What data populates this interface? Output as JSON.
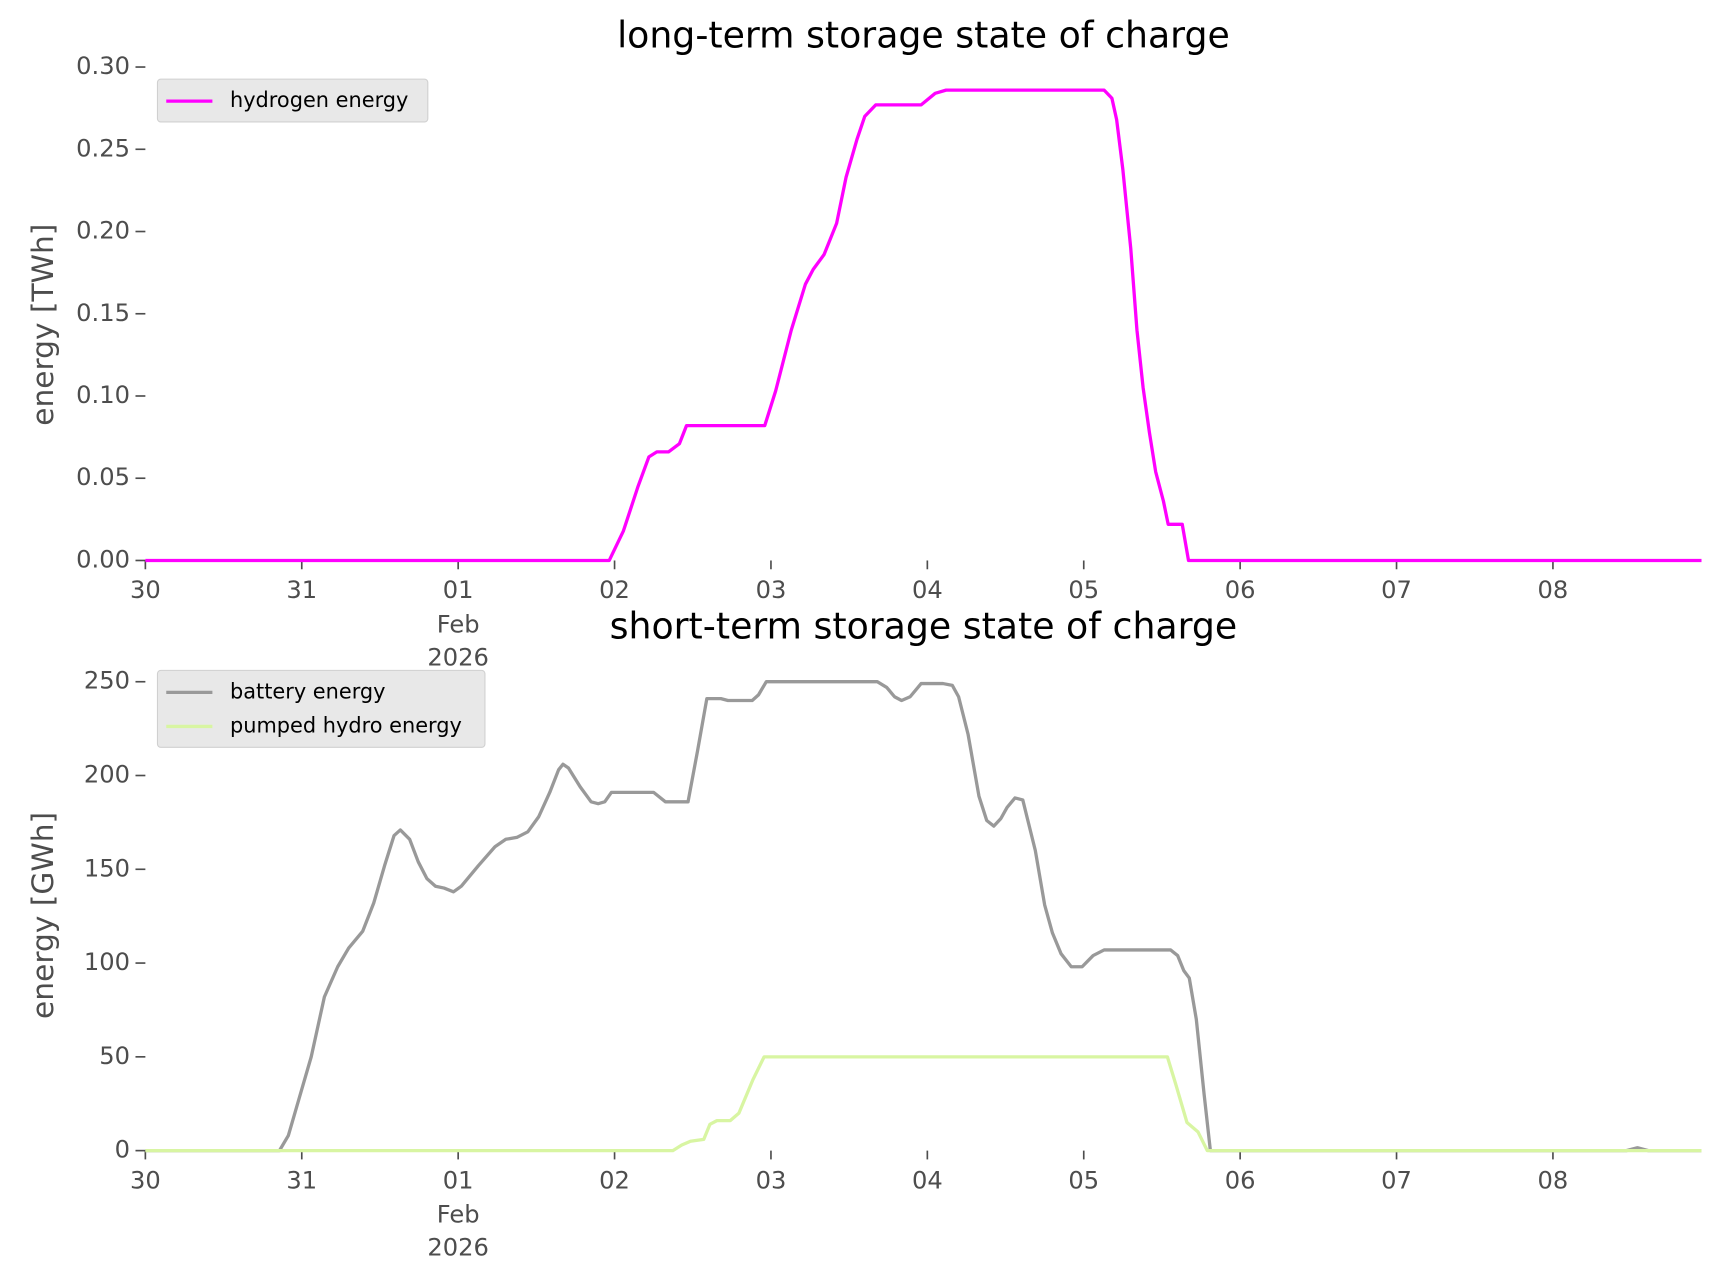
{
  "chart_data": [
    {
      "type": "line",
      "title": "long-term storage state of charge",
      "ylabel": "energy [TWh]",
      "xlim": [
        0,
        9.95
      ],
      "ylim": [
        0,
        0.3
      ],
      "xticks": [
        {
          "value": 0,
          "label": "30"
        },
        {
          "value": 1,
          "label": "31"
        },
        {
          "value": 2,
          "label": "01"
        },
        {
          "value": 3,
          "label": "02"
        },
        {
          "value": 4,
          "label": "03"
        },
        {
          "value": 5,
          "label": "04"
        },
        {
          "value": 6,
          "label": "05"
        },
        {
          "value": 7,
          "label": "06"
        },
        {
          "value": 8,
          "label": "07"
        },
        {
          "value": 9,
          "label": "08"
        }
      ],
      "xtick_sublabels": [
        "Feb",
        "2026"
      ],
      "yticks": [
        {
          "value": 0,
          "label": "0.00"
        },
        {
          "value": 0.05,
          "label": "0.05"
        },
        {
          "value": 0.1,
          "label": "0.10"
        },
        {
          "value": 0.15,
          "label": "0.15"
        },
        {
          "value": 0.2,
          "label": "0.20"
        },
        {
          "value": 0.25,
          "label": "0.25"
        },
        {
          "value": 0.3,
          "label": "0.30"
        }
      ],
      "legend": "upper left",
      "series": [
        {
          "name": "hydrogen energy",
          "color": "#ff00ff",
          "x": [
            0,
            2.966,
            3.057,
            3.15,
            3.22,
            3.27,
            3.345,
            3.415,
            3.46,
            3.96,
            4.03,
            4.13,
            4.22,
            4.27,
            4.34,
            4.42,
            4.48,
            4.55,
            4.6,
            4.67,
            4.96,
            5.05,
            5.12,
            6.13,
            6.18,
            6.21,
            6.25,
            6.3,
            6.34,
            6.38,
            6.42,
            6.46,
            6.51,
            6.54,
            6.63,
            6.67,
            9.95
          ],
          "values": [
            0,
            0,
            0.018,
            0.045,
            0.063,
            0.066,
            0.066,
            0.071,
            0.082,
            0.082,
            0.103,
            0.14,
            0.168,
            0.177,
            0.186,
            0.205,
            0.233,
            0.256,
            0.27,
            0.277,
            0.277,
            0.284,
            0.286,
            0.286,
            0.281,
            0.268,
            0.238,
            0.19,
            0.14,
            0.105,
            0.078,
            0.054,
            0.036,
            0.022,
            0.022,
            0,
            0
          ]
        }
      ]
    },
    {
      "type": "line",
      "title": "short-term storage state of charge",
      "ylabel": "energy [GWh]",
      "xlim": [
        0,
        9.95
      ],
      "ylim": [
        0,
        262.5
      ],
      "xticks": [
        {
          "value": 0,
          "label": "30"
        },
        {
          "value": 1,
          "label": "31"
        },
        {
          "value": 2,
          "label": "01"
        },
        {
          "value": 3,
          "label": "02"
        },
        {
          "value": 4,
          "label": "03"
        },
        {
          "value": 5,
          "label": "04"
        },
        {
          "value": 6,
          "label": "05"
        },
        {
          "value": 7,
          "label": "06"
        },
        {
          "value": 8,
          "label": "07"
        },
        {
          "value": 9,
          "label": "08"
        }
      ],
      "xtick_sublabels": [
        "Feb",
        "2026"
      ],
      "yticks": [
        0,
        50,
        100,
        150,
        200,
        250
      ],
      "legend": "upper left",
      "series": [
        {
          "name": "battery energy",
          "color": "#999999",
          "x": [
            0,
            0.857,
            0.914,
            0.984,
            1.06,
            1.145,
            1.23,
            1.3,
            1.39,
            1.46,
            1.53,
            1.59,
            1.63,
            1.69,
            1.745,
            1.8,
            1.855,
            1.91,
            1.97,
            2.02,
            2.13,
            2.235,
            2.305,
            2.375,
            2.445,
            2.515,
            2.586,
            2.642,
            2.67,
            2.705,
            2.78,
            2.85,
            2.895,
            2.937,
            2.98,
            3.25,
            3.325,
            3.47,
            3.53,
            3.59,
            3.68,
            3.725,
            3.88,
            3.92,
            3.97,
            4.68,
            4.74,
            4.79,
            4.835,
            4.89,
            4.96,
            5.1,
            5.16,
            5.2,
            5.26,
            5.33,
            5.38,
            5.425,
            5.47,
            5.51,
            5.56,
            5.61,
            5.64,
            5.69,
            5.75,
            5.8,
            5.855,
            5.92,
            5.99,
            6.06,
            6.13,
            6.555,
            6.6,
            6.64,
            6.675,
            6.72,
            6.77,
            6.81,
            9.47,
            9.54,
            9.61,
            9.95
          ],
          "values": [
            0,
            0,
            8,
            28,
            50,
            82,
            98,
            108,
            117,
            132,
            152,
            168,
            171,
            166,
            154,
            145,
            141,
            140,
            138,
            141,
            152,
            162,
            166,
            167,
            170,
            178,
            191,
            203,
            206,
            204,
            194,
            186,
            185,
            186,
            191,
            191,
            186,
            186,
            213,
            241,
            241,
            240,
            240,
            243,
            250,
            250,
            247,
            242,
            240,
            242,
            249,
            249,
            248,
            242,
            222,
            189,
            176,
            173,
            177,
            183,
            188,
            187,
            177,
            160,
            131,
            116,
            105,
            98,
            98,
            104,
            107,
            107,
            104,
            96,
            92,
            70,
            30,
            0,
            0,
            1.5,
            0,
            0
          ]
        },
        {
          "name": "pumped hydro energy",
          "color": "#d8f5a2",
          "x": [
            0,
            3.373,
            3.43,
            3.485,
            3.57,
            3.61,
            3.655,
            3.74,
            3.795,
            3.886,
            3.956,
            6.535,
            6.59,
            6.66,
            6.73,
            6.79,
            9.95
          ],
          "values": [
            0,
            0,
            3,
            5,
            6,
            14,
            16,
            16,
            20,
            38,
            50,
            50,
            35,
            15,
            10,
            0,
            0
          ]
        }
      ]
    }
  ]
}
